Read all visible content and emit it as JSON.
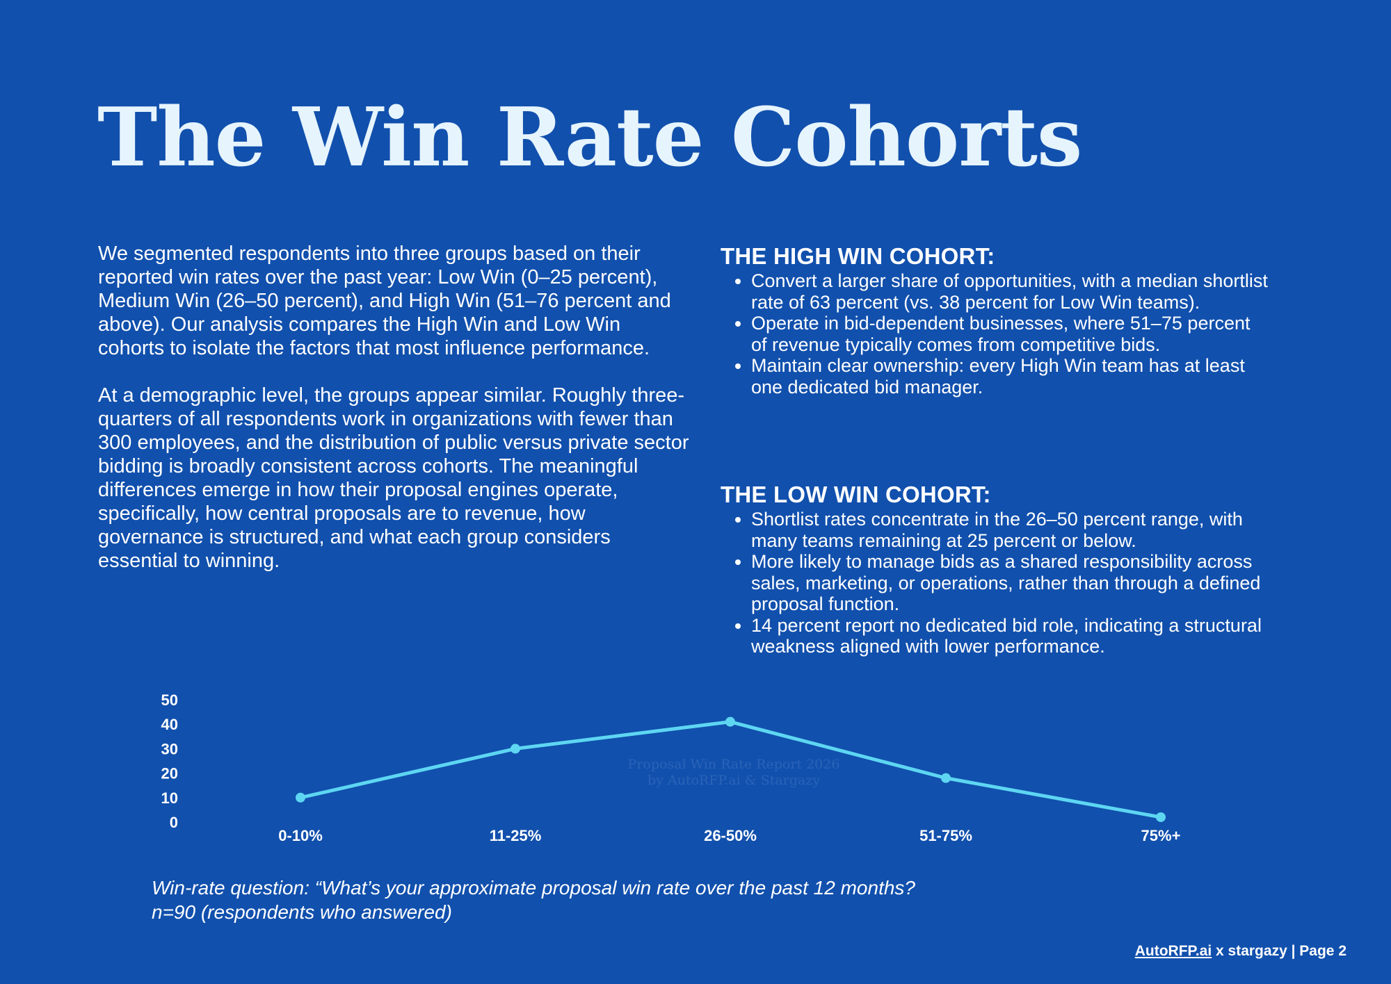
{
  "title": "The Win Rate Cohorts",
  "intro": {
    "paragraphs": [
      "We segmented respondents into three groups based on their reported win rates over the past year: Low Win (0–25 percent), Medium Win (26–50 percent), and High Win (51–76 percent and above). Our analysis compares the High Win and Low Win cohorts to isolate the factors that most influence performance.",
      "At a demographic level, the groups appear similar. Roughly three-quarters of all respondents work in organizations with fewer than 300 employees, and the distribution of public versus private sector bidding is broadly consistent across cohorts. The meaningful differences emerge in how their proposal engines operate, specifically, how central proposals are to revenue, how governance is structured, and what each group considers essential to winning."
    ]
  },
  "high_cohort": {
    "heading": "THE HIGH WIN COHORT:",
    "bullets": [
      "Convert a larger share of opportunities, with a median shortlist rate of 63 percent (vs. 38 percent for Low Win teams).",
      "Operate in bid-dependent businesses, where 51–75 percent of revenue typically comes from competitive bids.",
      "Maintain clear ownership: every High Win team has at least one dedicated bid manager."
    ]
  },
  "low_cohort": {
    "heading": "THE LOW WIN COHORT:",
    "bullets": [
      "Shortlist rates concentrate in the 26–50 percent range, with many teams remaining at 25 percent or below.",
      "More likely to manage bids as a shared responsibility across sales, marketing, or operations, rather than through a defined proposal function.",
      "14 percent report no dedicated bid role, indicating a structural weakness aligned with lower performance."
    ]
  },
  "chart_data": {
    "type": "line",
    "categories": [
      "0-10%",
      "11-25%",
      "26-50%",
      "51-75%",
      "75%+"
    ],
    "values": [
      10,
      30,
      41,
      18,
      2
    ],
    "ylim": [
      0,
      50
    ],
    "yticks": [
      "0",
      "10",
      "20",
      "30",
      "40",
      "50"
    ],
    "title": "",
    "xlabel": "",
    "ylabel": "",
    "grid": false,
    "line_color": "#5ed6f2",
    "watermark": [
      "Proposal Win Rate Report 2026",
      "by AutoRFP.ai & Stargazy"
    ]
  },
  "caption": "Win-rate question: “What’s your approximate proposal win rate over the past 12 months? n=90 (respondents who answered)",
  "footer": {
    "brand": "AutoRFP.ai",
    "rest": " x stargazy | Page 2"
  }
}
